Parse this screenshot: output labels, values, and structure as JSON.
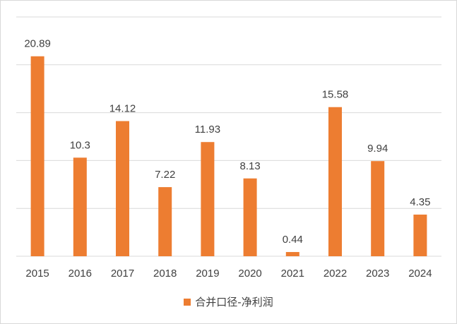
{
  "chart_data": {
    "type": "bar",
    "categories": [
      "2015",
      "2016",
      "2017",
      "2018",
      "2019",
      "2020",
      "2021",
      "2022",
      "2023",
      "2024"
    ],
    "series": [
      {
        "name": "合并口径-净利润",
        "values": [
          20.89,
          10.3,
          14.12,
          7.22,
          11.93,
          8.13,
          0.44,
          15.58,
          9.94,
          4.35
        ],
        "labels": [
          "20.89",
          "10.3",
          "14.12",
          "7.22",
          "11.93",
          "8.13",
          "0.44",
          "15.58",
          "9.94",
          "4.35"
        ],
        "color": "#ED7D31"
      }
    ],
    "title": "",
    "xlabel": "",
    "ylabel": "",
    "ylim": [
      0,
      25
    ],
    "grid": true,
    "legend": "bottom",
    "colors": {
      "bar": "#ED7D31",
      "grid": "#d9d9d9",
      "text": "#404040"
    }
  }
}
